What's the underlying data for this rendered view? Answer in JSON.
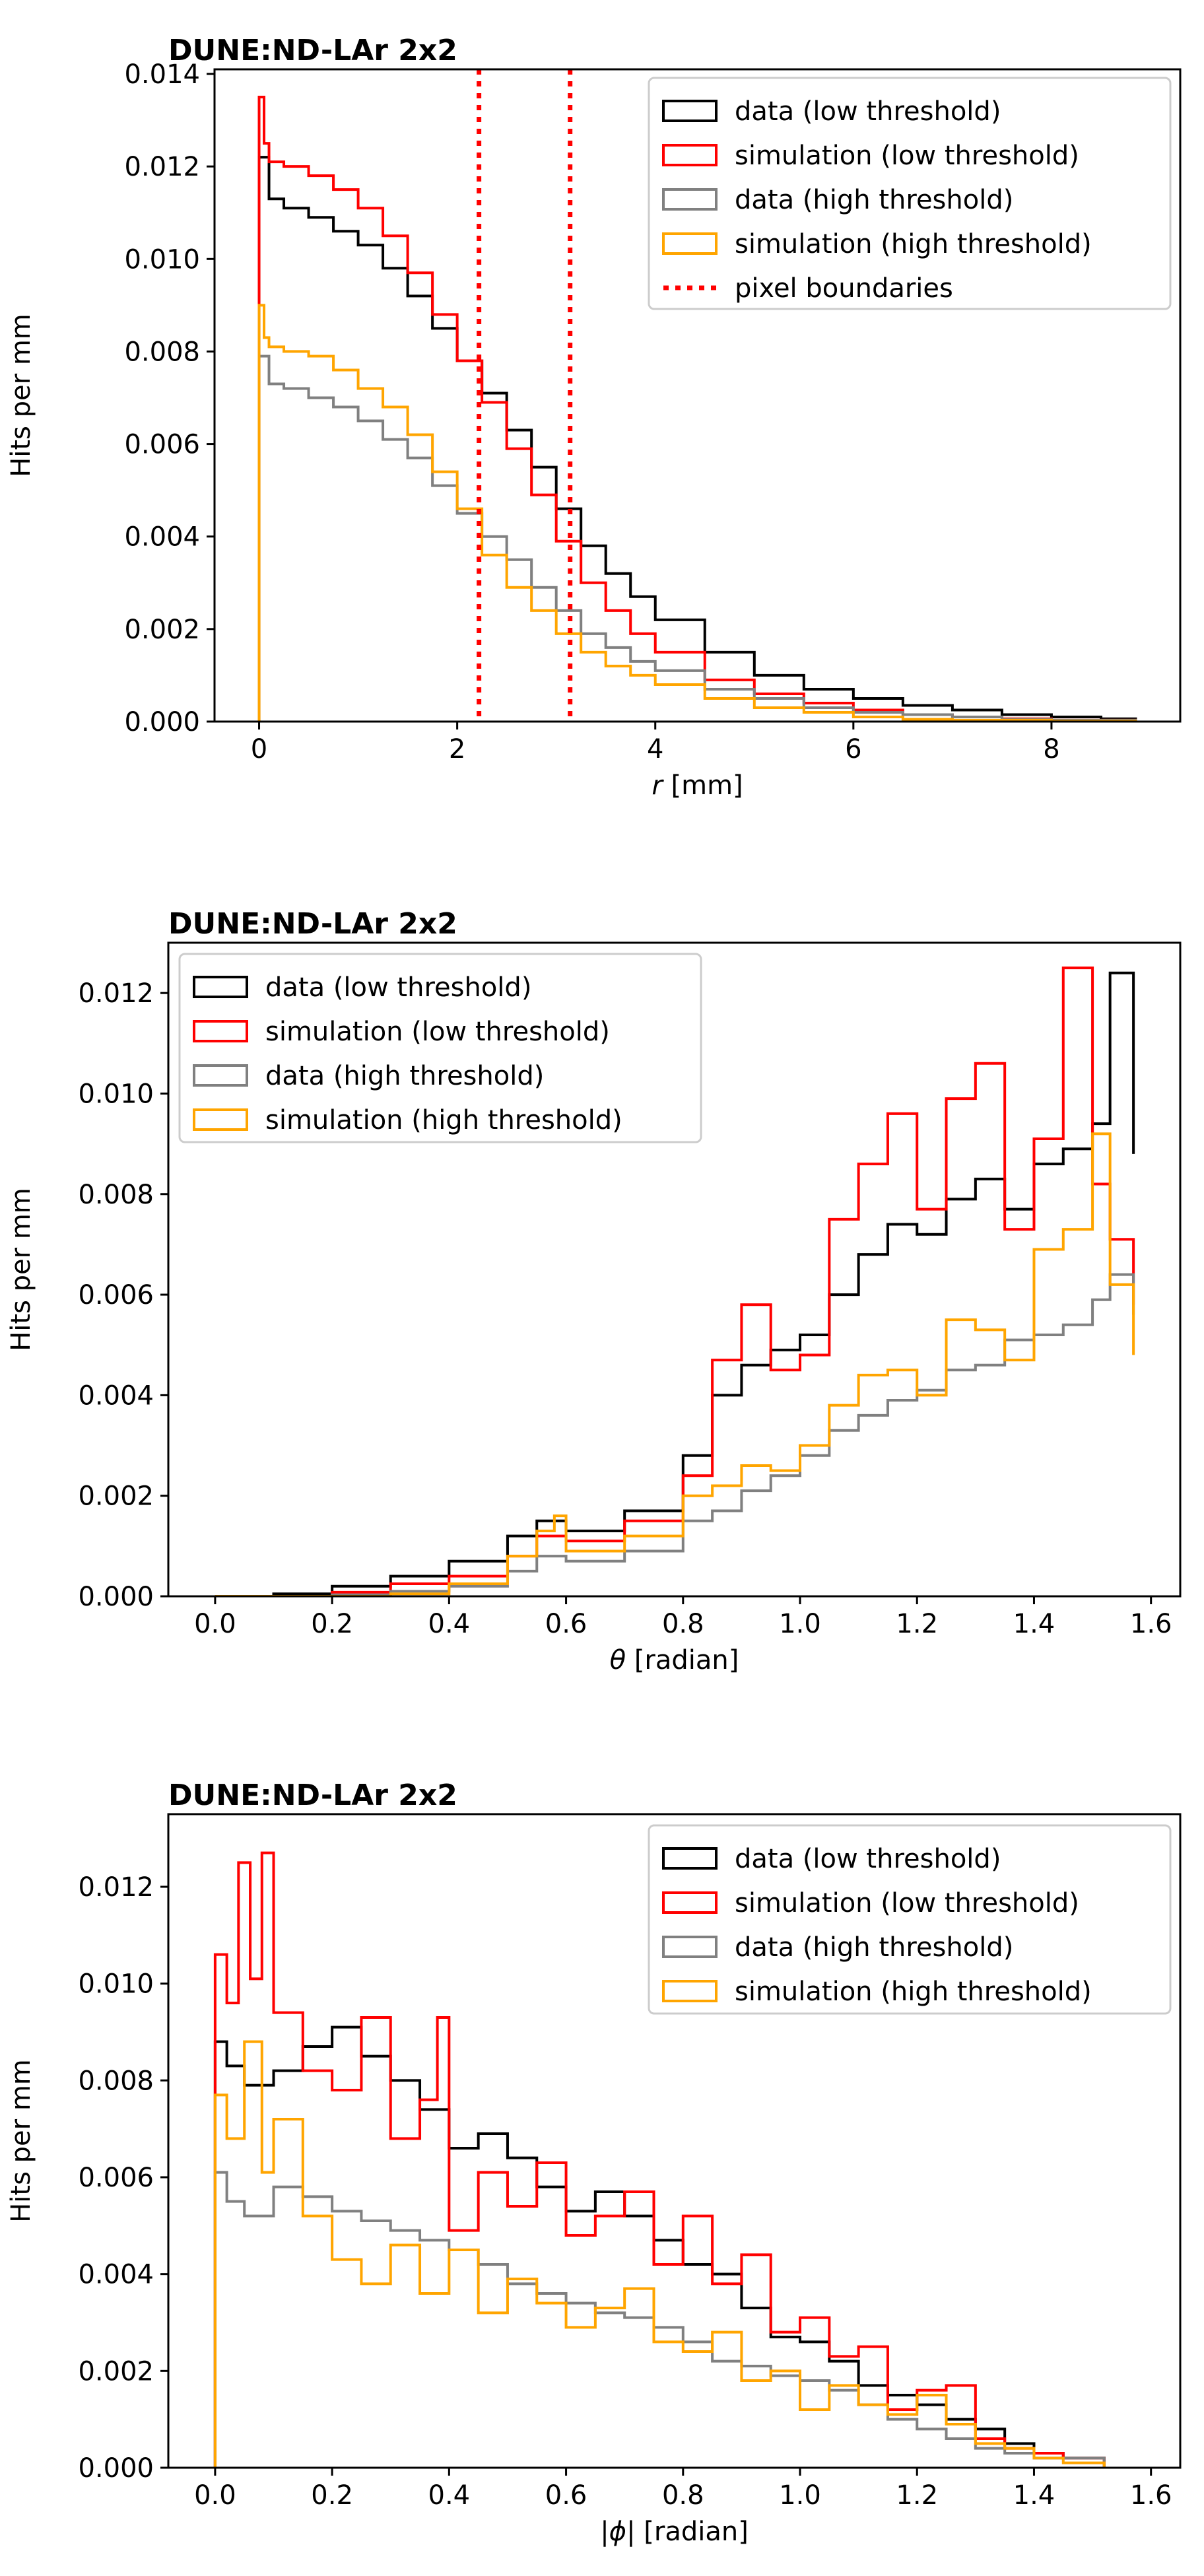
{
  "figure": {
    "experiment_label": "DUNE:ND-LAr 2x2"
  },
  "colors": {
    "data_low": "#000000",
    "sim_low": "#ff0000",
    "data_high": "#808080",
    "sim_high": "#ffa500",
    "boundary": "#ff0000"
  },
  "chart_data": [
    {
      "type": "line",
      "style": "step",
      "title": "DUNE:ND-LAr 2x2",
      "xlabel_var": "r",
      "xlabel_unit": "[mm]",
      "ylabel": "Hits per mm",
      "xlim": [
        -0.45,
        9.3
      ],
      "ylim": [
        0,
        0.0141
      ],
      "xticks": [
        0,
        2,
        4,
        6,
        8
      ],
      "xtick_labels": [
        "0",
        "2",
        "4",
        "6",
        "8"
      ],
      "yticks": [
        0,
        0.002,
        0.004,
        0.006,
        0.008,
        0.01,
        0.012,
        0.014
      ],
      "ytick_labels": [
        "0.000",
        "0.002",
        "0.004",
        "0.006",
        "0.008",
        "0.010",
        "0.012",
        "0.014"
      ],
      "legend_position": "top-right",
      "vlines": {
        "name": "pixel boundaries",
        "color": "#ff0000",
        "x": [
          2.22,
          3.14
        ]
      },
      "series": [
        {
          "name": "data (low threshold)",
          "color": "#000000",
          "x": [
            0,
            0.1,
            0.25,
            0.5,
            0.75,
            1.0,
            1.25,
            1.5,
            1.75,
            2.0,
            2.25,
            2.5,
            2.75,
            3.0,
            3.25,
            3.5,
            3.75,
            4.0,
            4.5,
            5.0,
            5.5,
            6.0,
            6.5,
            7.0,
            7.5,
            8.0,
            8.5,
            8.85
          ],
          "values": [
            0.0122,
            0.0113,
            0.0111,
            0.0109,
            0.0106,
            0.0103,
            0.0098,
            0.0092,
            0.0085,
            0.0078,
            0.0071,
            0.0063,
            0.0055,
            0.0046,
            0.0038,
            0.0032,
            0.0027,
            0.0022,
            0.0015,
            0.001,
            0.0007,
            0.0005,
            0.00035,
            0.00025,
            0.00015,
            0.0001,
            6e-05,
            0.0
          ]
        },
        {
          "name": "simulation (low threshold)",
          "color": "#ff0000",
          "x": [
            0,
            0.05,
            0.1,
            0.25,
            0.5,
            0.75,
            1.0,
            1.25,
            1.5,
            1.75,
            2.0,
            2.25,
            2.5,
            2.75,
            3.0,
            3.25,
            3.5,
            3.75,
            4.0,
            4.5,
            5.0,
            5.5,
            6.0,
            6.5,
            7.0,
            7.5,
            8.0,
            8.85
          ],
          "values": [
            0.0135,
            0.0125,
            0.0121,
            0.012,
            0.0118,
            0.0115,
            0.0111,
            0.0105,
            0.0097,
            0.0088,
            0.0078,
            0.0069,
            0.0059,
            0.0049,
            0.0039,
            0.003,
            0.0024,
            0.0019,
            0.0015,
            0.0009,
            0.0006,
            0.0004,
            0.00025,
            0.00015,
            0.0001,
            6e-05,
            3e-05,
            0.0
          ]
        },
        {
          "name": "data (high threshold)",
          "color": "#808080",
          "x": [
            0,
            0.1,
            0.25,
            0.5,
            0.75,
            1.0,
            1.25,
            1.5,
            1.75,
            2.0,
            2.25,
            2.5,
            2.75,
            3.0,
            3.25,
            3.5,
            3.75,
            4.0,
            4.5,
            5.0,
            5.5,
            6.0,
            6.5,
            7.0,
            7.5,
            8.0,
            8.85
          ],
          "values": [
            0.0079,
            0.0073,
            0.0072,
            0.007,
            0.0068,
            0.0065,
            0.0061,
            0.0057,
            0.0051,
            0.0045,
            0.004,
            0.0035,
            0.0029,
            0.0024,
            0.0019,
            0.0016,
            0.0013,
            0.0011,
            0.0007,
            0.0005,
            0.0003,
            0.0002,
            0.00015,
            0.0001,
            5e-05,
            3e-05,
            0.0
          ]
        },
        {
          "name": "simulation (high threshold)",
          "color": "#ffa500",
          "x": [
            0,
            0.05,
            0.1,
            0.25,
            0.5,
            0.75,
            1.0,
            1.25,
            1.5,
            1.75,
            2.0,
            2.25,
            2.5,
            2.75,
            3.0,
            3.25,
            3.5,
            3.75,
            4.0,
            4.5,
            5.0,
            5.5,
            6.0,
            6.5,
            7.0,
            8.0,
            8.85
          ],
          "values": [
            0.009,
            0.0083,
            0.0081,
            0.008,
            0.0079,
            0.0076,
            0.0072,
            0.0068,
            0.0062,
            0.0054,
            0.0046,
            0.0036,
            0.0029,
            0.0024,
            0.0019,
            0.0015,
            0.0012,
            0.001,
            0.0008,
            0.0005,
            0.0003,
            0.0002,
            0.0001,
            5e-05,
            3e-05,
            1e-05,
            0.0
          ]
        }
      ]
    },
    {
      "type": "line",
      "style": "step",
      "title": "DUNE:ND-LAr 2x2",
      "xlabel_var": "θ",
      "xlabel_unit": "[radian]",
      "ylabel": "Hits per mm",
      "xlim": [
        -0.08,
        1.65
      ],
      "ylim": [
        0,
        0.013
      ],
      "xticks": [
        0,
        0.2,
        0.4,
        0.6,
        0.8,
        1.0,
        1.2,
        1.4,
        1.6
      ],
      "xtick_labels": [
        "0.0",
        "0.2",
        "0.4",
        "0.6",
        "0.8",
        "1.0",
        "1.2",
        "1.4",
        "1.6"
      ],
      "yticks": [
        0,
        0.002,
        0.004,
        0.006,
        0.008,
        0.01,
        0.012
      ],
      "ytick_labels": [
        "0.000",
        "0.002",
        "0.004",
        "0.006",
        "0.008",
        "0.010",
        "0.012"
      ],
      "legend_position": "top-left",
      "series": [
        {
          "name": "data (low threshold)",
          "color": "#000000",
          "x": [
            0.0,
            0.1,
            0.2,
            0.3,
            0.4,
            0.5,
            0.55,
            0.6,
            0.7,
            0.8,
            0.85,
            0.9,
            0.95,
            1.0,
            1.05,
            1.1,
            1.15,
            1.2,
            1.25,
            1.3,
            1.35,
            1.4,
            1.45,
            1.5,
            1.53,
            1.57
          ],
          "values": [
            0.0,
            5e-05,
            0.0002,
            0.0004,
            0.0007,
            0.0012,
            0.0015,
            0.0013,
            0.0017,
            0.0028,
            0.004,
            0.0046,
            0.0049,
            0.0052,
            0.006,
            0.0068,
            0.0074,
            0.0072,
            0.0079,
            0.0083,
            0.0077,
            0.0086,
            0.0089,
            0.0094,
            0.0124,
            0.0088
          ]
        },
        {
          "name": "simulation (low threshold)",
          "color": "#ff0000",
          "x": [
            0.0,
            0.2,
            0.3,
            0.4,
            0.5,
            0.55,
            0.6,
            0.7,
            0.8,
            0.85,
            0.9,
            0.95,
            1.0,
            1.05,
            1.1,
            1.15,
            1.2,
            1.25,
            1.3,
            1.35,
            1.4,
            1.45,
            1.5,
            1.53,
            1.57
          ],
          "values": [
            0.0,
            8e-05,
            0.00025,
            0.0004,
            0.0008,
            0.0012,
            0.0011,
            0.0015,
            0.0024,
            0.0047,
            0.0058,
            0.0045,
            0.0048,
            0.0075,
            0.0086,
            0.0096,
            0.0077,
            0.0099,
            0.0106,
            0.0073,
            0.0091,
            0.0125,
            0.0082,
            0.0071,
            0.0058
          ]
        },
        {
          "name": "data (high threshold)",
          "color": "#808080",
          "x": [
            0.0,
            0.2,
            0.3,
            0.4,
            0.5,
            0.55,
            0.6,
            0.7,
            0.8,
            0.85,
            0.9,
            0.95,
            1.0,
            1.05,
            1.1,
            1.15,
            1.2,
            1.25,
            1.3,
            1.35,
            1.4,
            1.45,
            1.5,
            1.53,
            1.57
          ],
          "values": [
            0.0,
            3e-05,
            0.0001,
            0.0002,
            0.0005,
            0.0008,
            0.0007,
            0.0009,
            0.0015,
            0.0017,
            0.0021,
            0.0024,
            0.0028,
            0.0033,
            0.0036,
            0.0039,
            0.0041,
            0.0045,
            0.0046,
            0.0051,
            0.0052,
            0.0054,
            0.0059,
            0.0064,
            0.0056
          ]
        },
        {
          "name": "simulation (high threshold)",
          "color": "#ffa500",
          "x": [
            0.0,
            0.3,
            0.4,
            0.5,
            0.55,
            0.58,
            0.6,
            0.7,
            0.8,
            0.85,
            0.9,
            0.95,
            1.0,
            1.05,
            1.1,
            1.15,
            1.2,
            1.25,
            1.3,
            1.35,
            1.4,
            1.45,
            1.5,
            1.53,
            1.57
          ],
          "values": [
            0.0,
            5e-05,
            0.00025,
            0.0008,
            0.0013,
            0.0016,
            0.0009,
            0.0012,
            0.002,
            0.0022,
            0.0026,
            0.0025,
            0.003,
            0.0038,
            0.0044,
            0.0045,
            0.004,
            0.0055,
            0.0053,
            0.0047,
            0.0069,
            0.0073,
            0.0092,
            0.0062,
            0.0048
          ]
        }
      ]
    },
    {
      "type": "line",
      "style": "step",
      "title": "DUNE:ND-LAr 2x2",
      "xlabel_var": "|ϕ|",
      "xlabel_unit": "[radian]",
      "ylabel": "Hits per mm",
      "xlim": [
        -0.08,
        1.65
      ],
      "ylim": [
        0,
        0.0135
      ],
      "xticks": [
        0,
        0.2,
        0.4,
        0.6,
        0.8,
        1.0,
        1.2,
        1.4,
        1.6
      ],
      "xtick_labels": [
        "0.0",
        "0.2",
        "0.4",
        "0.6",
        "0.8",
        "1.0",
        "1.2",
        "1.4",
        "1.6"
      ],
      "yticks": [
        0,
        0.002,
        0.004,
        0.006,
        0.008,
        0.01,
        0.012
      ],
      "ytick_labels": [
        "0.000",
        "0.002",
        "0.004",
        "0.006",
        "0.008",
        "0.010",
        "0.012"
      ],
      "legend_position": "top-right",
      "series": [
        {
          "name": "data (low threshold)",
          "color": "#000000",
          "x": [
            0.0,
            0.02,
            0.05,
            0.1,
            0.15,
            0.2,
            0.25,
            0.3,
            0.35,
            0.4,
            0.45,
            0.5,
            0.55,
            0.6,
            0.65,
            0.7,
            0.75,
            0.8,
            0.85,
            0.9,
            0.95,
            1.0,
            1.05,
            1.1,
            1.15,
            1.2,
            1.25,
            1.3,
            1.35,
            1.4,
            1.45,
            1.52
          ],
          "values": [
            0.0088,
            0.0083,
            0.0079,
            0.0082,
            0.0087,
            0.0091,
            0.0085,
            0.008,
            0.0074,
            0.0066,
            0.0069,
            0.0064,
            0.0058,
            0.0053,
            0.0057,
            0.0052,
            0.0047,
            0.0042,
            0.004,
            0.0033,
            0.0027,
            0.0026,
            0.0022,
            0.0017,
            0.0015,
            0.0013,
            0.001,
            0.0008,
            0.0005,
            0.0003,
            0.0002,
            0.0
          ]
        },
        {
          "name": "simulation (low threshold)",
          "color": "#ff0000",
          "x": [
            0.0,
            0.02,
            0.04,
            0.06,
            0.08,
            0.1,
            0.15,
            0.2,
            0.25,
            0.3,
            0.35,
            0.38,
            0.4,
            0.45,
            0.5,
            0.55,
            0.6,
            0.65,
            0.7,
            0.75,
            0.8,
            0.85,
            0.9,
            0.95,
            1.0,
            1.05,
            1.1,
            1.15,
            1.2,
            1.25,
            1.3,
            1.35,
            1.4,
            1.45,
            1.52
          ],
          "values": [
            0.0106,
            0.0096,
            0.0125,
            0.0101,
            0.0127,
            0.0094,
            0.0082,
            0.0078,
            0.0093,
            0.0068,
            0.0076,
            0.0093,
            0.0049,
            0.0061,
            0.0054,
            0.0063,
            0.0048,
            0.0052,
            0.0057,
            0.0042,
            0.0052,
            0.0038,
            0.0044,
            0.0028,
            0.0031,
            0.0023,
            0.0025,
            0.0012,
            0.0016,
            0.0017,
            0.0006,
            0.0004,
            0.0003,
            0.0002,
            0.0
          ]
        },
        {
          "name": "data (high threshold)",
          "color": "#808080",
          "x": [
            0.0,
            0.02,
            0.05,
            0.1,
            0.15,
            0.2,
            0.25,
            0.3,
            0.35,
            0.4,
            0.45,
            0.5,
            0.55,
            0.6,
            0.65,
            0.7,
            0.75,
            0.8,
            0.85,
            0.9,
            0.95,
            1.0,
            1.05,
            1.1,
            1.15,
            1.2,
            1.25,
            1.3,
            1.35,
            1.4,
            1.52
          ],
          "values": [
            0.0061,
            0.0055,
            0.0052,
            0.0058,
            0.0056,
            0.0053,
            0.0051,
            0.0049,
            0.0047,
            0.0045,
            0.0042,
            0.0038,
            0.0036,
            0.0034,
            0.0032,
            0.0031,
            0.0029,
            0.0026,
            0.0022,
            0.0021,
            0.0019,
            0.0018,
            0.0016,
            0.0013,
            0.001,
            0.0008,
            0.0006,
            0.0004,
            0.0003,
            0.0002,
            0.0
          ]
        },
        {
          "name": "simulation (high threshold)",
          "color": "#ffa500",
          "x": [
            0.0,
            0.02,
            0.05,
            0.08,
            0.1,
            0.15,
            0.2,
            0.25,
            0.3,
            0.35,
            0.4,
            0.45,
            0.5,
            0.55,
            0.6,
            0.65,
            0.7,
            0.75,
            0.8,
            0.85,
            0.9,
            0.95,
            1.0,
            1.05,
            1.1,
            1.15,
            1.2,
            1.25,
            1.3,
            1.35,
            1.4,
            1.45,
            1.52
          ],
          "values": [
            0.0077,
            0.0068,
            0.0088,
            0.0061,
            0.0072,
            0.0052,
            0.0043,
            0.0038,
            0.0046,
            0.0036,
            0.0045,
            0.0032,
            0.0039,
            0.0034,
            0.0029,
            0.0033,
            0.0037,
            0.0026,
            0.0024,
            0.0028,
            0.0018,
            0.002,
            0.0012,
            0.0017,
            0.0013,
            0.0011,
            0.0015,
            0.0009,
            0.0005,
            0.0004,
            0.0002,
            0.0001,
            0.0
          ]
        }
      ]
    }
  ]
}
